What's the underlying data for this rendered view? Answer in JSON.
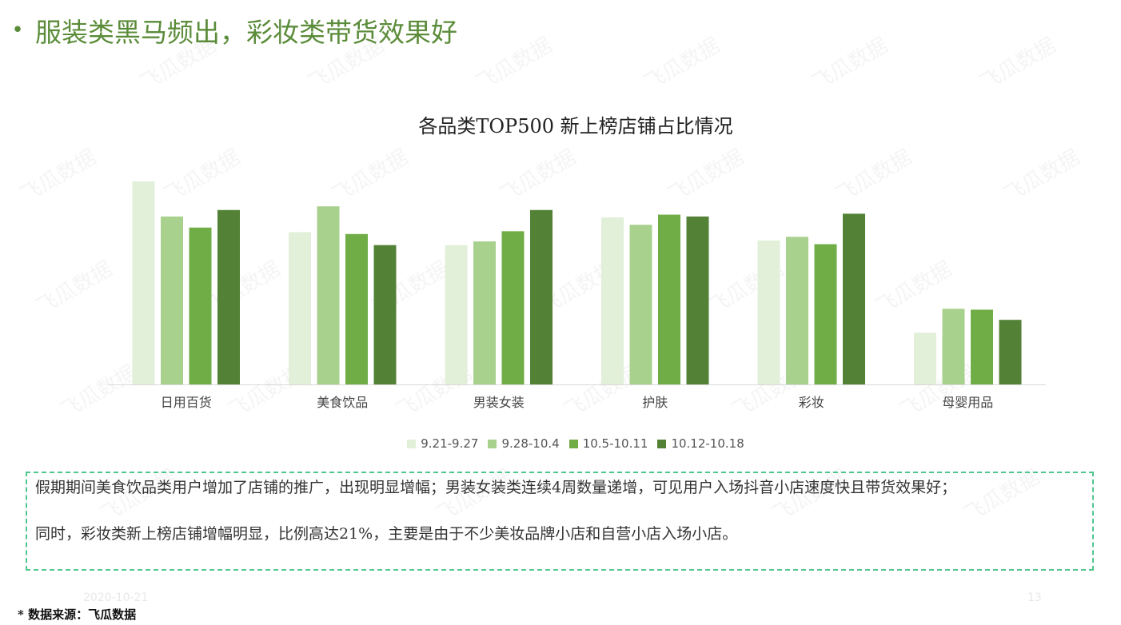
{
  "heading": {
    "bullet": "•",
    "text": "服装类黑马频出，彩妆类带货效果好"
  },
  "watermark_text": "飞瓜数据",
  "colors": {
    "s1": "#e2efd9",
    "s2": "#a9d18e",
    "s3": "#70ad47",
    "s4": "#538135",
    "accent": "#5b8c3a",
    "box_border": "#4fc68c"
  },
  "chart_data": {
    "type": "bar",
    "title": "各品类TOP500 新上榜店铺占比情况",
    "categories": [
      "日用百货",
      "美食饮品",
      "男装女装",
      "护肤",
      "彩妆",
      "母婴用品"
    ],
    "series": [
      {
        "name": "9.21-9.27",
        "values": [
          22,
          16.5,
          15.1,
          18.1,
          15.6,
          5.6
        ]
      },
      {
        "name": "9.28-10.4",
        "values": [
          18.2,
          19.3,
          15.5,
          17.3,
          16,
          8.2
        ]
      },
      {
        "name": "10.5-10.11",
        "values": [
          17,
          16.3,
          16.6,
          18.4,
          15.2,
          8.1
        ]
      },
      {
        "name": "10.12-10.18",
        "values": [
          18.9,
          15.1,
          18.9,
          18.2,
          18.5,
          7
        ]
      }
    ],
    "xlabel": "",
    "ylabel": "",
    "ylim": [
      0,
      22
    ],
    "grid": false,
    "legend": "bottom"
  },
  "note": {
    "p1": "假期期间美食饮品类用户增加了店铺的推广，出现明显增幅；男装女装类连续4周数量递增，可见用户入场抖音小店速度快且带货效果好；",
    "p2": "同时，彩妆类新上榜店铺增幅明显，比例高达21%，主要是由于不少美妆品牌小店和自营小店入场小店。"
  },
  "footer": {
    "date": "2020-10-21",
    "page": "13",
    "source": "* 数据来源：飞瓜数据"
  }
}
